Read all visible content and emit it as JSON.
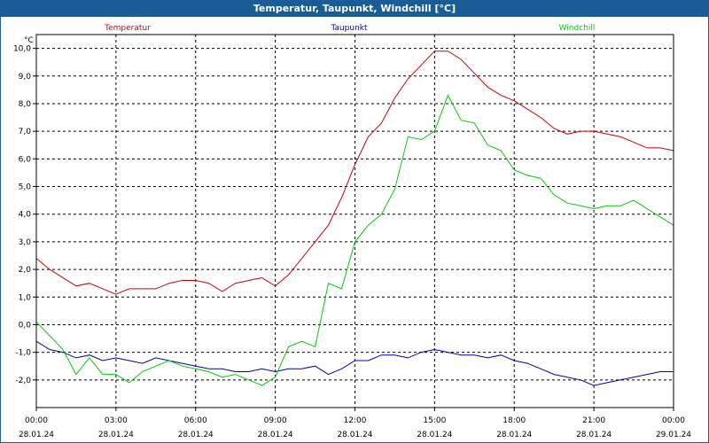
{
  "window": {
    "title": "Temperatur, Taupunkt, Windchill [°C]"
  },
  "chart_data": {
    "type": "line",
    "title": "Temperatur, Taupunkt, Windchill [°C]",
    "y_unit": "°C",
    "ylim": [
      -3,
      10.5
    ],
    "y_ticks": [
      "10,0",
      "9,0",
      "8,0",
      "7,0",
      "6,0",
      "5,0",
      "4,0",
      "3,0",
      "2,0",
      "1,0",
      "0,0",
      "-1,0",
      "-2,0"
    ],
    "y_tick_values": [
      10,
      9,
      8,
      7,
      6,
      5,
      4,
      3,
      2,
      1,
      0,
      -1,
      -2
    ],
    "x_unit": "hours",
    "xlim": [
      0,
      24
    ],
    "x_ticks": [
      {
        "time": "00:00",
        "date": "28.01.24"
      },
      {
        "time": "03:00",
        "date": "28.01.24"
      },
      {
        "time": "06:00",
        "date": "28.01.24"
      },
      {
        "time": "09:00",
        "date": "28.01.24"
      },
      {
        "time": "12:00",
        "date": "28.01.24"
      },
      {
        "time": "15:00",
        "date": "28.01.24"
      },
      {
        "time": "18:00",
        "date": "28.01.24"
      },
      {
        "time": "21:00",
        "date": "28.01.24"
      },
      {
        "time": "00:00",
        "date": "29.01.24"
      }
    ],
    "x_tick_values": [
      0,
      3,
      6,
      9,
      12,
      15,
      18,
      21,
      24
    ],
    "grid": true,
    "legend_position": "top",
    "series": [
      {
        "name": "Temperatur",
        "color": "#cc0000",
        "x": [
          0,
          0.5,
          1,
          1.5,
          2,
          2.5,
          3,
          3.5,
          4,
          4.5,
          5,
          5.5,
          6,
          6.5,
          7,
          7.5,
          8,
          8.5,
          9,
          9.5,
          10,
          10.5,
          11,
          11.5,
          12,
          12.5,
          13,
          13.5,
          14,
          14.5,
          15,
          15.5,
          16,
          16.5,
          17,
          17.5,
          18,
          18.5,
          19,
          19.5,
          20,
          20.5,
          21,
          21.5,
          22,
          22.5,
          23,
          23.5,
          24
        ],
        "y": [
          2.4,
          2.0,
          1.7,
          1.4,
          1.5,
          1.3,
          1.1,
          1.3,
          1.3,
          1.3,
          1.5,
          1.6,
          1.6,
          1.5,
          1.2,
          1.5,
          1.6,
          1.7,
          1.4,
          1.8,
          2.4,
          3.0,
          3.6,
          4.6,
          5.8,
          6.8,
          7.3,
          8.2,
          8.9,
          9.4,
          9.9,
          9.9,
          9.6,
          9.1,
          8.6,
          8.3,
          8.1,
          7.8,
          7.5,
          7.1,
          6.9,
          7.0,
          7.0,
          6.9,
          6.8,
          6.6,
          6.4,
          6.4,
          6.3
        ]
      },
      {
        "name": "Taupunkt",
        "color": "#0000aa",
        "x": [
          0,
          0.5,
          1,
          1.5,
          2,
          2.5,
          3,
          3.5,
          4,
          4.5,
          5,
          5.5,
          6,
          6.5,
          7,
          7.5,
          8,
          8.5,
          9,
          9.5,
          10,
          10.5,
          11,
          11.5,
          12,
          12.5,
          13,
          13.5,
          14,
          14.5,
          15,
          15.5,
          16,
          16.5,
          17,
          17.5,
          18,
          18.5,
          19,
          19.5,
          20,
          20.5,
          21,
          21.5,
          22,
          22.5,
          23,
          23.5,
          24
        ],
        "y": [
          -0.6,
          -0.9,
          -1.0,
          -1.2,
          -1.1,
          -1.3,
          -1.2,
          -1.3,
          -1.4,
          -1.2,
          -1.3,
          -1.4,
          -1.5,
          -1.6,
          -1.6,
          -1.7,
          -1.7,
          -1.6,
          -1.7,
          -1.6,
          -1.6,
          -1.5,
          -1.8,
          -1.6,
          -1.3,
          -1.3,
          -1.1,
          -1.1,
          -1.2,
          -1.0,
          -0.9,
          -1.0,
          -1.1,
          -1.1,
          -1.2,
          -1.1,
          -1.3,
          -1.4,
          -1.6,
          -1.8,
          -1.9,
          -2.0,
          -2.2,
          -2.1,
          -2.0,
          -1.9,
          -1.8,
          -1.7,
          -1.7
        ]
      },
      {
        "name": "Windchill",
        "color": "#00cc00",
        "x": [
          0,
          0.5,
          1,
          1.5,
          2,
          2.5,
          3,
          3.5,
          4,
          4.5,
          5,
          5.5,
          6,
          6.5,
          7,
          7.5,
          8,
          8.5,
          9,
          9.5,
          10,
          10.5,
          11,
          11.5,
          12,
          12.5,
          13,
          13.5,
          14,
          14.5,
          15,
          15.5,
          16,
          16.5,
          17,
          17.5,
          18,
          18.5,
          19,
          19.5,
          20,
          20.5,
          21,
          21.5,
          22,
          22.5,
          23,
          23.5,
          24
        ],
        "y": [
          0.1,
          -0.4,
          -0.9,
          -1.8,
          -1.2,
          -1.8,
          -1.8,
          -2.1,
          -1.7,
          -1.5,
          -1.3,
          -1.5,
          -1.6,
          -1.7,
          -1.9,
          -1.8,
          -2.0,
          -2.2,
          -1.9,
          -0.8,
          -0.6,
          -0.8,
          1.5,
          1.3,
          3.0,
          3.6,
          4.0,
          4.9,
          6.8,
          6.7,
          7.0,
          8.3,
          7.4,
          7.3,
          6.5,
          6.3,
          5.6,
          5.4,
          5.3,
          4.7,
          4.4,
          4.3,
          4.2,
          4.3,
          4.3,
          4.5,
          4.2,
          3.9,
          3.6
        ]
      }
    ]
  }
}
